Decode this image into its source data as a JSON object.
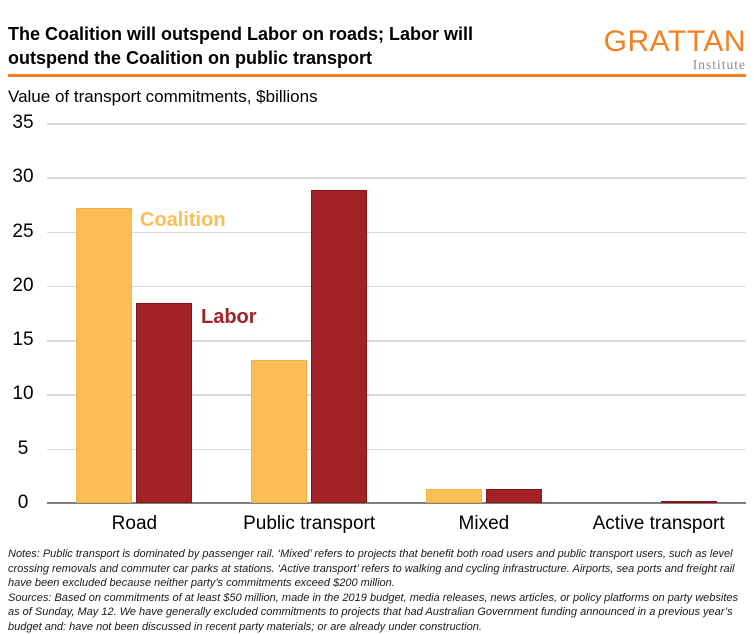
{
  "header": {
    "title_line1": "The Coalition will outspend Labor on roads; Labor will",
    "title_line2": "outspend the Coalition on public transport",
    "logo": {
      "name": "GRATTAN",
      "subtitle": "Institute"
    }
  },
  "subtitle": "Value of transport commitments, $billions",
  "chart_data": {
    "type": "bar",
    "title": "The Coalition will outspend Labor on roads; Labor will outspend the Coalition on public transport",
    "subtitle": "Value of transport commitments, $billions",
    "xlabel": "",
    "ylabel": "Value of transport commitments, $billions",
    "ylim": [
      0,
      35
    ],
    "yticks": [
      0,
      5,
      10,
      15,
      20,
      25,
      30,
      35
    ],
    "grid": "horizontal",
    "legend_position": "inline-annotations",
    "categories": [
      "Road",
      "Public transport",
      "Mixed",
      "Active transport"
    ],
    "series": [
      {
        "name": "Coalition",
        "color": "#FCBE55",
        "border": "#F6B146",
        "values": [
          27.2,
          13.2,
          1.3,
          0
        ]
      },
      {
        "name": "Labor",
        "color": "#A22226",
        "border": "#871418",
        "values": [
          18.4,
          28.8,
          1.3,
          0.2
        ]
      }
    ]
  },
  "footer": {
    "notes": "Notes: Public transport is dominated by passenger rail. ‘Mixed’ refers to projects that benefit both road users and public transport users, such as level crossing removals and commuter car parks at stations. ‘Active transport’ refers to walking and cycling infrastructure. Airports, sea ports and freight rail have been excluded because neither party’s commitments exceed $200 million.",
    "sources": "Sources: Based on commitments of at least $50 million, made in the 2019 budget, media releases, news articles, or policy platforms on party websites as of Sunday, May 12. We have generally excluded commitments to projects that had Australian Government funding announced in a previous year’s budget and: have not been discussed in recent party materials; or are already under construction."
  },
  "colors": {
    "accent_orange": "#F5801F",
    "coalition_orange": "#FCBE55",
    "labor_red": "#A22226",
    "gridline": "#DADADA",
    "axis": "#7F7F7F"
  }
}
